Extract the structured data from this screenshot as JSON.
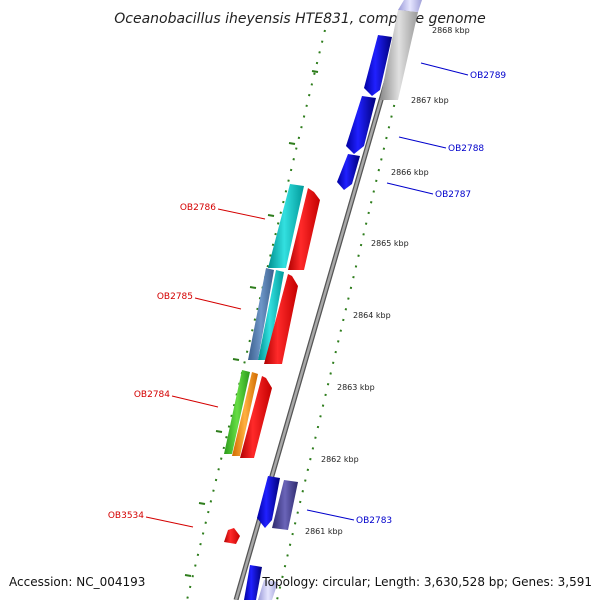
{
  "title": "Oceanobacillus iheyensis HTE831, complete genome",
  "footer": {
    "accession": "Accession: NC_004193",
    "summary": "Topology: circular; Length: 3,630,528 bp; Genes: 3,591"
  },
  "colors": {
    "backbone": "#8c8c8c",
    "tick": "#2e7d1c",
    "forward_label": "#d40000",
    "reverse_label": "#0000cc"
  },
  "scale_ticks": [
    "2868 kbp",
    "2867 kbp",
    "2866 kbp",
    "2865 kbp",
    "2864 kbp",
    "2863 kbp",
    "2862 kbp",
    "2861 kbp"
  ],
  "gene_labels": {
    "reverse": [
      "OB2789",
      "OB2788",
      "OB2787",
      "OB2783"
    ],
    "forward": [
      "OB2786",
      "OB2785",
      "OB2784",
      "OB3534"
    ]
  }
}
